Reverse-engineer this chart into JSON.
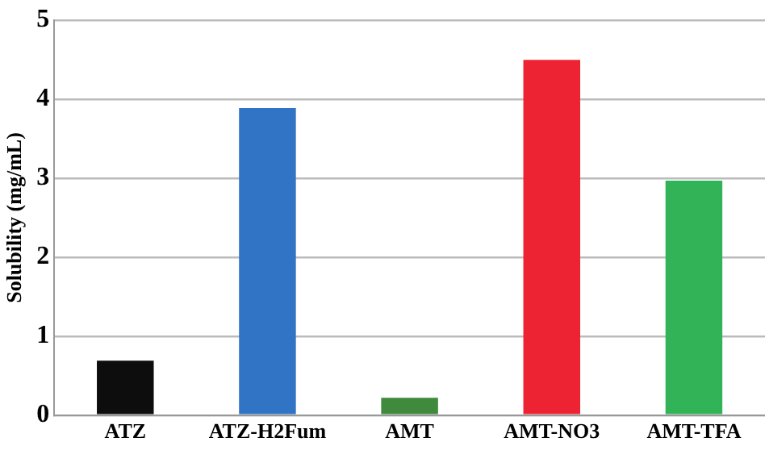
{
  "chart_data": {
    "type": "bar",
    "ylabel": "Solubility (mg/mL)",
    "categories": [
      "ATZ",
      "ATZ-H2Fum",
      "AMT",
      "AMT-NO3",
      "AMT-TFA"
    ],
    "values": [
      0.69,
      3.89,
      0.22,
      4.5,
      2.97
    ],
    "colors": [
      "#0d0d0d",
      "#3173c4",
      "#3f8a3c",
      "#ed2333",
      "#33b358"
    ],
    "ylim": [
      0,
      5
    ],
    "yticks": [
      0,
      1,
      2,
      3,
      4,
      5
    ],
    "grid": "y",
    "legend": false
  }
}
